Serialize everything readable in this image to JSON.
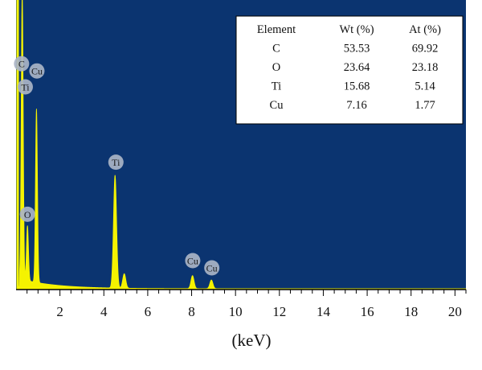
{
  "colors": {
    "plot_background": "#0b3470",
    "spectrum": "#f5f300",
    "peak_badge": "#aab4c6",
    "table_background": "#ffffff"
  },
  "chart_data": {
    "type": "area",
    "title": "",
    "xlabel": "(keV)",
    "ylabel": "",
    "xlim": [
      0,
      20.5
    ],
    "ylim": [
      0,
      1.0
    ],
    "x_ticks": [
      2,
      4,
      6,
      8,
      10,
      12,
      14,
      16,
      18,
      20
    ],
    "x_tick_labels": [
      "2",
      "4",
      "6",
      "8",
      "10",
      "12",
      "14",
      "16",
      "18",
      "20"
    ],
    "grid": false,
    "spectrum_peaks": [
      {
        "label": "C",
        "energy": 0.28,
        "relative_intensity": 1.0
      },
      {
        "label": "O",
        "energy": 0.52,
        "relative_intensity": 0.19
      },
      {
        "label": "Cu",
        "energy": 0.93,
        "relative_intensity": 0.6
      },
      {
        "label": "Ti",
        "energy": 4.51,
        "relative_intensity": 0.39
      },
      {
        "label": "Ti",
        "energy": 4.93,
        "relative_intensity": 0.05
      },
      {
        "label": "Cu",
        "energy": 8.04,
        "relative_intensity": 0.045
      },
      {
        "label": "Cu",
        "energy": 8.9,
        "relative_intensity": 0.03
      }
    ],
    "peak_labels": [
      {
        "text": "C",
        "energy": 0.25,
        "intensity": 0.78
      },
      {
        "text": "Cu",
        "energy": 0.95,
        "intensity": 0.755
      },
      {
        "text": "Ti",
        "energy": 0.42,
        "intensity": 0.7
      },
      {
        "text": "Ti",
        "energy": 4.55,
        "intensity": 0.44
      },
      {
        "text": "O",
        "energy": 0.52,
        "intensity": 0.26
      },
      {
        "text": "Cu",
        "energy": 8.05,
        "intensity": 0.1
      },
      {
        "text": "Cu",
        "energy": 8.92,
        "intensity": 0.075
      }
    ],
    "table": {
      "columns": [
        "Element",
        "Wt (%)",
        "At (%)"
      ],
      "rows": [
        [
          "C",
          "53.53",
          "69.92"
        ],
        [
          "O",
          "23.64",
          "23.18"
        ],
        [
          "Ti",
          "15.68",
          "5.14"
        ],
        [
          "Cu",
          "7.16",
          "1.77"
        ]
      ]
    }
  }
}
